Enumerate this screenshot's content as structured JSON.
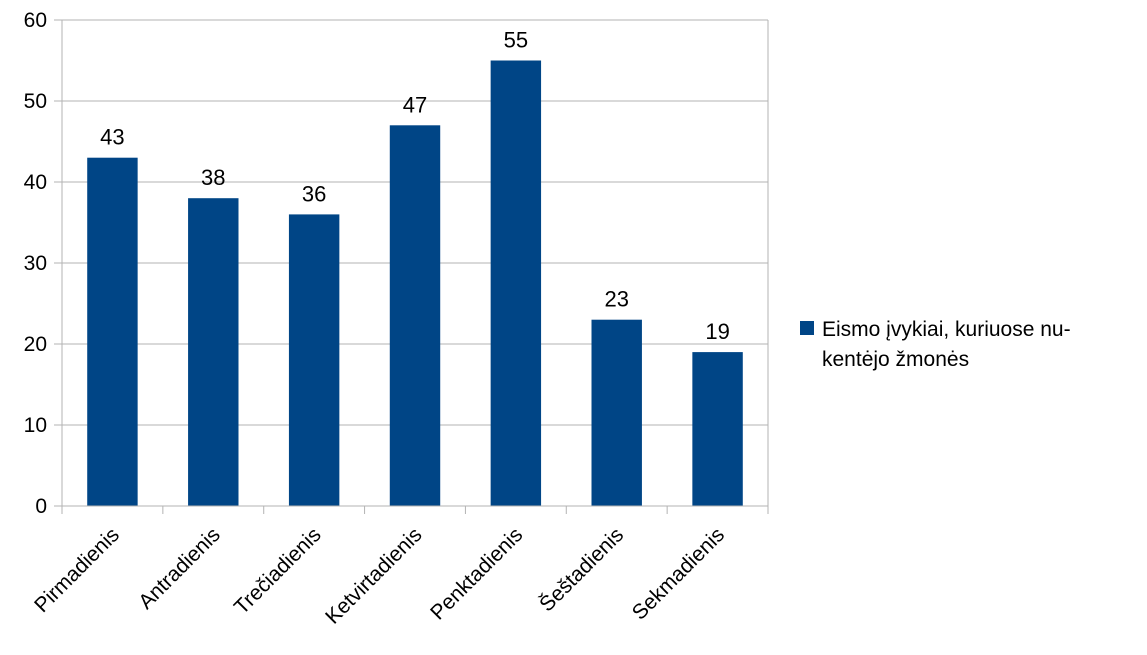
{
  "chart_data": {
    "type": "bar",
    "title": "",
    "xlabel": "",
    "ylabel": "",
    "categories": [
      "Pirmadienis",
      "Antradienis",
      "Trečiadienis",
      "Ketvirtadienis",
      "Penktadienis",
      "Šeštadienis",
      "Sekmadienis"
    ],
    "series": [
      {
        "name": "Eismo įvykiai, kuriuose nukentėjo žmonės",
        "values": [
          43,
          38,
          36,
          47,
          55,
          23,
          19
        ],
        "color": "#004586"
      }
    ],
    "ylim": [
      0,
      60
    ],
    "yticks": [
      0,
      10,
      20,
      30,
      40,
      50,
      60
    ],
    "grid": true,
    "data_labels": true,
    "legend_position": "right"
  },
  "legend": {
    "line1": "Eismo įvykiai, kuriuose nu-",
    "line2": "kentėjo žmonės"
  }
}
